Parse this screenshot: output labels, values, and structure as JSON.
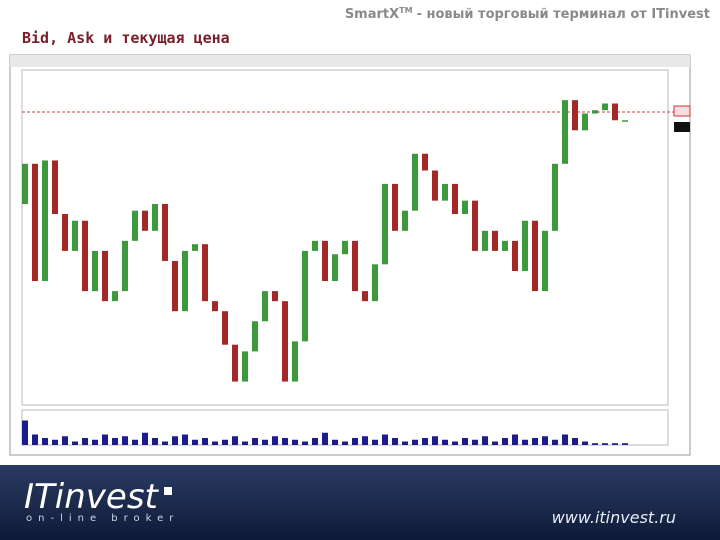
{
  "header": {
    "product": "SmartX",
    "trademark": "TM",
    "rest": "- новый торговый терминал от ITinvest"
  },
  "slide_title": "Bid, Ask и текущая цена",
  "chart_data": {
    "type": "candlestick",
    "open": [
      60,
      72,
      37,
      73,
      57,
      46,
      55,
      34,
      46,
      31,
      34,
      49,
      58,
      52,
      60,
      43,
      28,
      46,
      48,
      31,
      28,
      18,
      7,
      16,
      25,
      34,
      31,
      7,
      19,
      46,
      49,
      37,
      45,
      49,
      34,
      31,
      42,
      66,
      52,
      58,
      75,
      70,
      61,
      66,
      57,
      61,
      46,
      52,
      46,
      49,
      40,
      55,
      34,
      52,
      72,
      91,
      82,
      87,
      88,
      90,
      85
    ],
    "close": [
      72,
      37,
      73,
      57,
      46,
      55,
      34,
      46,
      31,
      34,
      49,
      58,
      52,
      60,
      43,
      28,
      46,
      48,
      31,
      28,
      18,
      7,
      16,
      25,
      34,
      31,
      7,
      19,
      46,
      49,
      37,
      45,
      49,
      34,
      31,
      42,
      66,
      52,
      58,
      75,
      70,
      61,
      66,
      57,
      61,
      46,
      52,
      46,
      49,
      40,
      55,
      34,
      52,
      72,
      91,
      82,
      87,
      88,
      90,
      85,
      85
    ],
    "volume": [
      70,
      30,
      20,
      15,
      25,
      10,
      20,
      15,
      30,
      20,
      25,
      15,
      35,
      20,
      10,
      25,
      30,
      15,
      20,
      10,
      15,
      25,
      10,
      20,
      15,
      25,
      20,
      15,
      10,
      20,
      35,
      15,
      10,
      20,
      25,
      15,
      30,
      20,
      10,
      15,
      20,
      25,
      15,
      10,
      20,
      15,
      25,
      10,
      20,
      30,
      15,
      20,
      25,
      15,
      30,
      20,
      10,
      5,
      5,
      5,
      5
    ],
    "ylim": [
      0,
      100
    ],
    "volume_ylim": [
      0,
      100
    ],
    "up_color": "#3c9a3c",
    "down_color": "#a32828",
    "volume_color": "#1c1c8c"
  },
  "footer": {
    "logo": "ITinvest",
    "tagline": "on-line broker",
    "url": "www.itinvest.ru"
  }
}
